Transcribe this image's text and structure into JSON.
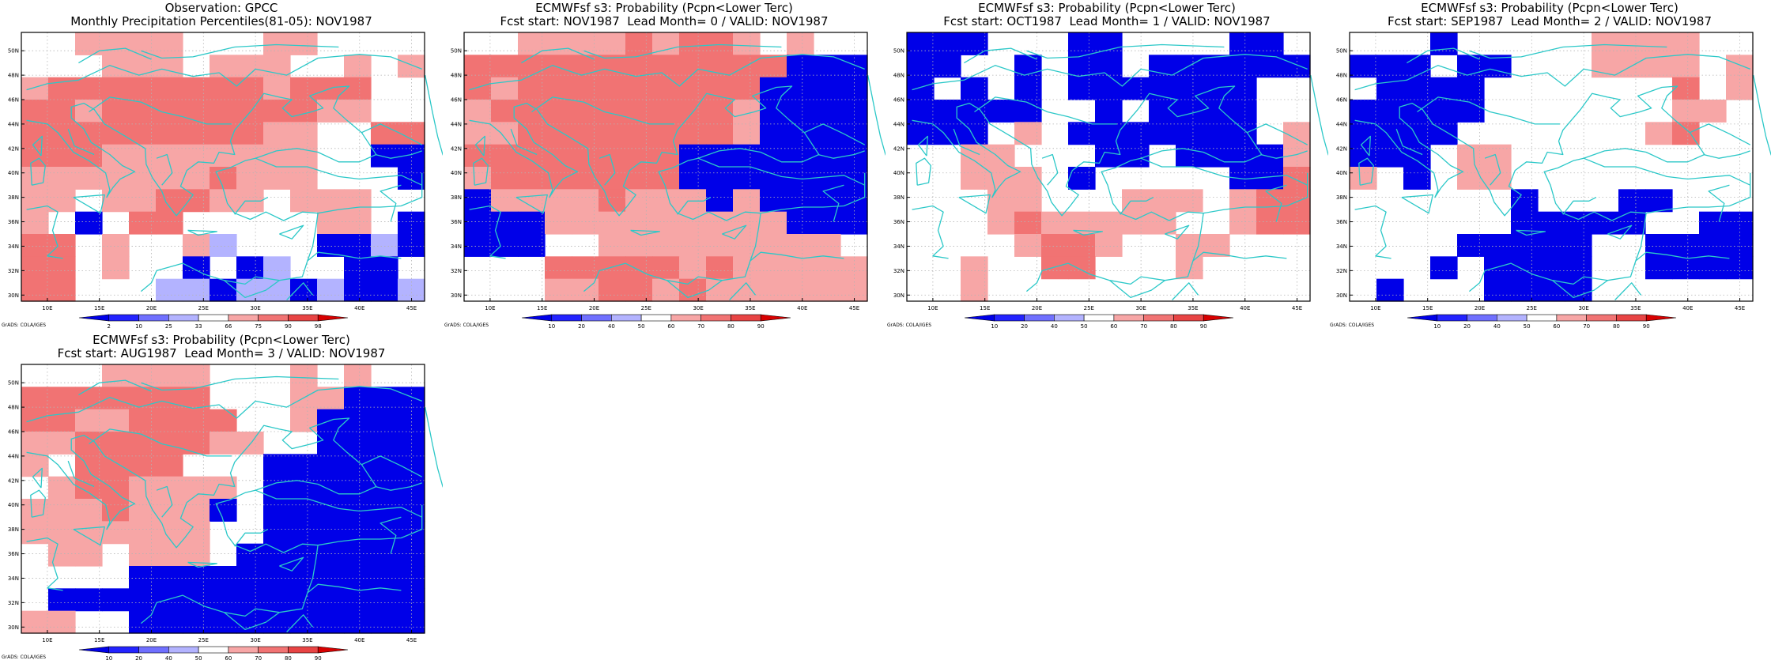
{
  "map": {
    "lat_labels": [
      "50N",
      "48N",
      "46N",
      "44N",
      "42N",
      "40N",
      "38N",
      "36N",
      "34N",
      "32N",
      "30N"
    ],
    "lon_labels": [
      "10E",
      "15E",
      "20E",
      "25E",
      "30E",
      "35E",
      "40E",
      "45E"
    ],
    "coast_color": "#2cc8c8",
    "grid_color": "#b4b4b4"
  },
  "colors": {
    "r1": "#fbd3d3",
    "r2": "#f7a6a6",
    "r3": "#f17373",
    "r4": "#e84444",
    "r5": "#d70000",
    "b1": "#b3b3ff",
    "b2": "#7070ff",
    "b3": "#2323ff",
    "b4": "#0000e8"
  },
  "panels": [
    {
      "title1": "Observation: GPCC",
      "title2": "Monthly Precipitation Percentiles(81-05): NOV1987",
      "colorbar": {
        "labels": [
          "2",
          "10",
          "25",
          "33",
          "66",
          "75",
          "90",
          "98"
        ]
      },
      "credit": "GrADS: COLA/IGES",
      "grid": [
        "..rrrr...rr....",
        "...rrr.rrr..r.r",
        "rRRRRRRRRrRRR..",
        "RRrRRRRRRRRrr..",
        "RRRRRRRRRrr..RR",
        "RRRrrrrrrrr..BB",
        "rrrrrrrRrrr...B",
        "rr.rrRRrr.rrr..",
        "r.B.RR.....rr.B",
        "RR.r..rb...BBbB",
        "RR.r..B.Bb..BB.",
        "RR...bbBbbBbBBb"
      ]
    },
    {
      "title1": "ECMWFsf s3: Probability (Pcpn<Lower Terc)",
      "title2": "Fcst start: NOV1987  Lead Month= 0 / VALID: NOV1987",
      "colorbar": {
        "labels": [
          "10",
          "20",
          "40",
          "50",
          "60",
          "70",
          "80",
          "90"
        ]
      },
      "credit": "GrADS: COLA/IGES",
      "grid": [
        "..rrrrRrRRr.r..",
        "RRRRRRRRRRRRBBB",
        "RrRRRRRRRRRBBBB",
        "rRRRRRRRRRrBBBB",
        "rrRRRRRRRRrBBBB",
        "RRRRRRRRBBBBBBB",
        "rRRRRRRRBBBBBBB",
        "BrrrrRrrrBrBBBB",
        "BBBrrrrrrrrrBBB",
        "BBB..rrrrrrrrr.",
        "...RRRRRrRrrrrr",
        "...rrRRrRrrrrrr"
      ]
    },
    {
      "title1": "ECMWFsf s3: Probability (Pcpn<Lower Terc)",
      "title2": "Fcst start: OCT1987  Lead Month= 1 / VALID: NOV1987",
      "colorbar": {
        "labels": [
          "10",
          "20",
          "40",
          "50",
          "60",
          "70",
          "80",
          "90"
        ]
      },
      "credit": "GrADS: COLA/IGES",
      "grid": [
        "BBB...BB....BB.",
        "BB..B.BB.BBBBBB",
        "B.B.B.BBBBBBB..",
        "BBBBB..B.BBBB..",
        "BBB.r.BBBBBBB.r",
        "..rr...BB.BBBBr",
        "..rrr.B.....BBR",
        "...rr...rrr.rRR",
        "...rRrrrrr..rRR",
        "....rRRr..rr...",
        "..r..RR...r....",
        "..r............"
      ]
    },
    {
      "title1": "ECMWFsf s3: Probability (Pcpn<Lower Terc)",
      "title2": "Fcst start: SEP1987  Lead Month= 2 / VALID: NOV1987",
      "colorbar": {
        "labels": [
          "10",
          "20",
          "40",
          "50",
          "60",
          "70",
          "80",
          "90"
        ]
      },
      "credit": "GrADS: COLA/IGES",
      "grid": [
        "...B.....rrrr..",
        "BBB.BB...rrrr.r",
        ".BBBB.......R.r",
        "BBBBB.......rr.",
        "BBBB.......rR..",
        "BBB.rr..........",
        "r.B.rr.........",
        "......B...BB...",
        "......BBBBB..BB",
        "....BBBBB..BBBB",
        "...B.BBBB..BBBB",
        ".B...BBBB......"
      ]
    },
    {
      "title1": "ECMWFsf s3: Probability (Pcpn<Lower Terc)",
      "title2": "Fcst start: AUG1987  Lead Month= 3 / VALID: NOV1987",
      "colorbar": {
        "labels": [
          "10",
          "20",
          "40",
          "50",
          "60",
          "70",
          "80",
          "90"
        ]
      },
      "credit": "GrADS: COLA/IGES",
      "grid": [
        "...rrrr...r.r..",
        "RRRRRRR...rrBBB",
        "RRrrRRRR..rBBBB",
        "rrRRRRRrr..BBBB",
        "r.RRRR...BBBBBB",
        ".rRRrrrr.BBBBBB",
        "rrrRrrrB.BBBBBB",
        "rrrrrrr..BBBBBB",
        ".rr.rrr.BBBBBBB",
        "....BBBBBBBBBBB",
        ".BBBBBBBBBBBBBB",
        "rr..BBBBBBBBBBB"
      ]
    }
  ]
}
